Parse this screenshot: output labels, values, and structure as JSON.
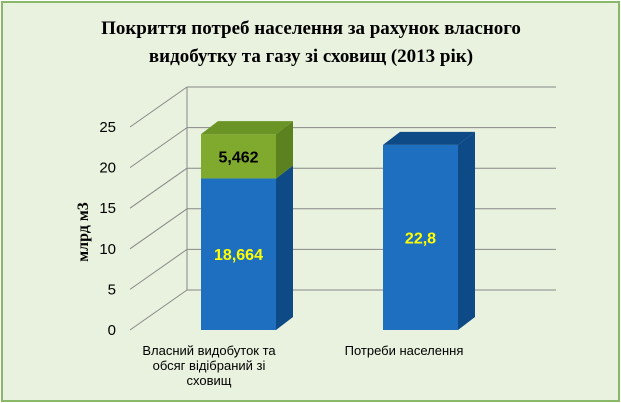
{
  "chart_data": {
    "type": "bar",
    "title_lines": [
      "Покриття потреб населення за рахунок власного",
      "видобутку та газу зі сховищ (2013 рік)"
    ],
    "ylabel": "млрд м3",
    "xlabel": "",
    "ylim": [
      0,
      25
    ],
    "yticks": [
      "0",
      "5",
      "10",
      "15",
      "20",
      "25"
    ],
    "grid": true,
    "legend": "none",
    "categories": [
      [
        "Власний видобуток та",
        "обсяг відібраний зі",
        "сховищ"
      ],
      [
        "Потреби населення"
      ]
    ],
    "series": [
      {
        "values": [
          18.664,
          22.8
        ],
        "labels": [
          "18,664",
          "22,8"
        ],
        "color": "#1f6fc0"
      },
      {
        "values": [
          5.462,
          0
        ],
        "labels": [
          "5,462",
          ""
        ],
        "color": "#7faa2e"
      }
    ],
    "colors": {
      "background": "#e9f2de",
      "border": "#8ab86a",
      "blue_front": "#1f6fc0",
      "blue_side": "#0d4a86",
      "green_front": "#7faa2e",
      "green_side": "#5c8220",
      "green_top": "#6a9526",
      "label_on_blue": "#ffff00",
      "label_on_green": "#000000",
      "grid": "#888888"
    }
  }
}
